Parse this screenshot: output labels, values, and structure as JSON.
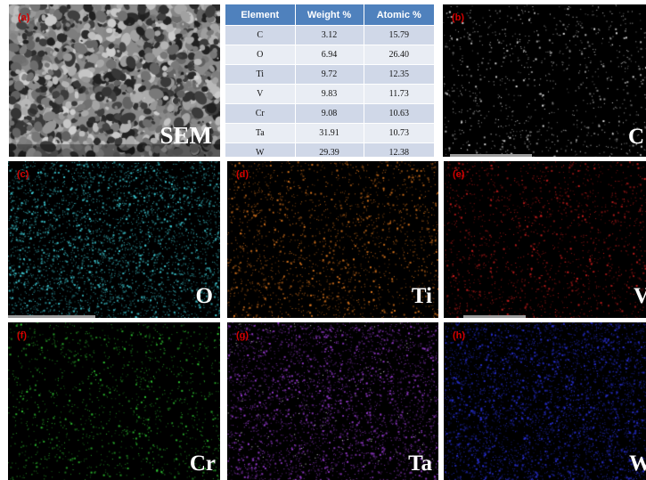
{
  "table": {
    "headers": [
      "Element",
      "Weight %",
      "Atomic %"
    ],
    "rows": [
      [
        "C",
        "3.12",
        "15.79"
      ],
      [
        "O",
        "6.94",
        "26.40"
      ],
      [
        "Ti",
        "9.72",
        "12.35"
      ],
      [
        "V",
        "9.83",
        "11.73"
      ],
      [
        "Cr",
        "9.08",
        "10.63"
      ],
      [
        "Ta",
        "31.91",
        "10.73"
      ],
      [
        "W",
        "29.39",
        "12.38"
      ]
    ]
  },
  "panels": [
    {
      "id": "a",
      "tag": "(a)",
      "label": "SEM",
      "type": "sem"
    },
    {
      "id": "b",
      "tag": "(b)",
      "label": "C",
      "color": "#e8e8e8"
    },
    {
      "id": "c",
      "tag": "(c)",
      "label": "O",
      "color": "#3fd2dc"
    },
    {
      "id": "d",
      "tag": "(d)",
      "label": "Ti",
      "color": "#e0781e"
    },
    {
      "id": "e",
      "tag": "(e)",
      "label": "V",
      "color": "#d41e1e"
    },
    {
      "id": "f",
      "tag": "(f)",
      "label": "Cr",
      "color": "#2fc832"
    },
    {
      "id": "g",
      "tag": "(g)",
      "label": "Ta",
      "color": "#9a3cd6"
    },
    {
      "id": "h",
      "tag": "(h)",
      "label": "W",
      "color": "#2830d8"
    }
  ]
}
